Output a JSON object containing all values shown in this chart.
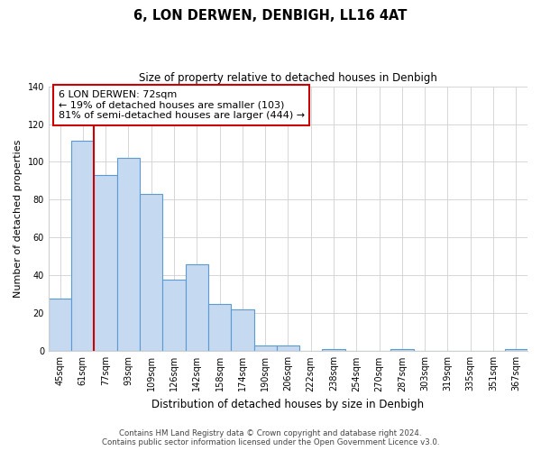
{
  "title": "6, LON DERWEN, DENBIGH, LL16 4AT",
  "subtitle": "Size of property relative to detached houses in Denbigh",
  "xlabel": "Distribution of detached houses by size in Denbigh",
  "ylabel": "Number of detached properties",
  "bar_labels": [
    "45sqm",
    "61sqm",
    "77sqm",
    "93sqm",
    "109sqm",
    "126sqm",
    "142sqm",
    "158sqm",
    "174sqm",
    "190sqm",
    "206sqm",
    "222sqm",
    "238sqm",
    "254sqm",
    "270sqm",
    "287sqm",
    "303sqm",
    "319sqm",
    "335sqm",
    "351sqm",
    "367sqm"
  ],
  "bar_values": [
    28,
    111,
    93,
    102,
    83,
    38,
    46,
    25,
    22,
    3,
    3,
    0,
    1,
    0,
    0,
    1,
    0,
    0,
    0,
    0,
    1
  ],
  "bar_fill_color": "#c5d9f0",
  "bar_edge_color": "#5b9bd5",
  "vline_color": "#cc0000",
  "vline_x": 1.5,
  "ylim": [
    0,
    140
  ],
  "yticks": [
    0,
    20,
    40,
    60,
    80,
    100,
    120,
    140
  ],
  "annotation_title": "6 LON DERWEN: 72sqm",
  "annotation_line1": "← 19% of detached houses are smaller (103)",
  "annotation_line2": "81% of semi-detached houses are larger (444) →",
  "footer_line1": "Contains HM Land Registry data © Crown copyright and database right 2024.",
  "footer_line2": "Contains public sector information licensed under the Open Government Licence v3.0.",
  "background_color": "#ffffff",
  "grid_color": "#d0d0d0",
  "ann_box_edge_color": "#cc0000",
  "ann_box_fill_color": "#ffffff"
}
